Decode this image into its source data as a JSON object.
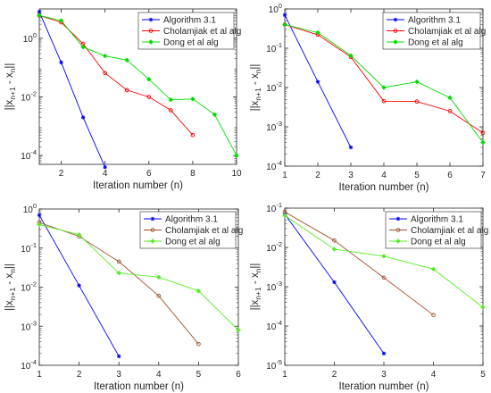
{
  "chart_data": [
    {
      "type": "line",
      "y_scale": "log",
      "xlabel": "Iteration number (n)",
      "ylabel": "||x_{n+1} - x_n||",
      "xlim": [
        1,
        10
      ],
      "ylim": [
        5e-05,
        10
      ],
      "x_ticks": [
        "2",
        "4",
        "6",
        "8",
        "10"
      ],
      "x_tick_values": [
        2,
        4,
        6,
        8,
        10
      ],
      "y_ticks": [
        "10^-4",
        "10^-2",
        "10^0"
      ],
      "y_tick_values": [
        0.0001,
        0.01,
        1
      ],
      "legend_position": "top-right",
      "series": [
        {
          "name": "Algorithm 3.1",
          "color": "#0000ff",
          "marker": "star",
          "x": [
            1,
            2,
            3,
            4
          ],
          "y": [
            8,
            0.15,
            0.002,
            4e-05
          ]
        },
        {
          "name": "Cholamjiak et al alg",
          "color": "#ff0000",
          "marker": "circle",
          "x": [
            1,
            2,
            3,
            4,
            5,
            6,
            7,
            8
          ],
          "y": [
            6,
            3.5,
            0.65,
            0.065,
            0.017,
            0.01,
            0.0035,
            0.0005
          ]
        },
        {
          "name": "Dong et al alg",
          "color": "#00dd00",
          "marker": "diamond",
          "x": [
            1,
            2,
            3,
            4,
            5,
            6,
            7,
            8,
            9,
            10
          ],
          "y": [
            6,
            4,
            0.5,
            0.25,
            0.18,
            0.04,
            0.008,
            0.0085,
            0.0025,
            0.0001
          ]
        }
      ]
    },
    {
      "type": "line",
      "y_scale": "log",
      "xlabel": "Iteration number (n)",
      "ylabel": "||x_{n+1} - x_n||",
      "xlim": [
        1,
        7
      ],
      "ylim": [
        0.0001,
        1
      ],
      "x_ticks": [
        "1",
        "2",
        "3",
        "4",
        "5",
        "6",
        "7"
      ],
      "x_tick_values": [
        1,
        2,
        3,
        4,
        5,
        6,
        7
      ],
      "y_ticks": [
        "10^-4",
        "10^-3",
        "10^-2",
        "10^-1",
        "10^0"
      ],
      "y_tick_values": [
        0.0001,
        0.001,
        0.01,
        0.1,
        1
      ],
      "legend_position": "top-right",
      "series": [
        {
          "name": "Algorithm 3.1",
          "color": "#0000ff",
          "marker": "star",
          "x": [
            1,
            2,
            3
          ],
          "y": [
            0.7,
            0.014,
            0.0003
          ]
        },
        {
          "name": "Cholamjiak et al alg",
          "color": "#ff0000",
          "marker": "circle",
          "x": [
            1,
            2,
            3,
            4,
            5,
            6,
            7
          ],
          "y": [
            0.4,
            0.22,
            0.06,
            0.0045,
            0.0044,
            0.0025,
            0.0007
          ]
        },
        {
          "name": "Dong et al alg",
          "color": "#00dd00",
          "marker": "diamond",
          "x": [
            1,
            2,
            3,
            4,
            5,
            6,
            7
          ],
          "y": [
            0.4,
            0.25,
            0.065,
            0.01,
            0.014,
            0.0055,
            0.0004
          ]
        }
      ]
    },
    {
      "type": "line",
      "y_scale": "log",
      "xlabel": "Iteration number (n)",
      "ylabel": "||x_{n+1} - x_n||",
      "xlim": [
        1,
        6
      ],
      "ylim": [
        0.0001,
        1
      ],
      "x_ticks": [
        "1",
        "2",
        "3",
        "4",
        "5",
        "6"
      ],
      "x_tick_values": [
        1,
        2,
        3,
        4,
        5,
        6
      ],
      "y_ticks": [
        "10^-4",
        "10^-3",
        "10^-2",
        "10^-1",
        "10^0"
      ],
      "y_tick_values": [
        0.0001,
        0.001,
        0.01,
        0.1,
        1
      ],
      "legend_position": "top-right",
      "series": [
        {
          "name": "Algorithm 3.1",
          "color": "#0000ff",
          "marker": "star",
          "x": [
            1,
            2,
            3
          ],
          "y": [
            0.7,
            0.011,
            0.00017
          ]
        },
        {
          "name": "Cholamjiak et al alg",
          "color": "#a0522d",
          "marker": "circle",
          "x": [
            1,
            2,
            3,
            4,
            5
          ],
          "y": [
            0.45,
            0.2,
            0.045,
            0.006,
            0.00035
          ]
        },
        {
          "name": "Dong et al alg",
          "color": "#55ee22",
          "marker": "diamond",
          "x": [
            1,
            2,
            3,
            4,
            5,
            6
          ],
          "y": [
            0.4,
            0.22,
            0.023,
            0.018,
            0.008,
            0.0008
          ]
        }
      ]
    },
    {
      "type": "line",
      "y_scale": "log",
      "xlabel": "Iteration number (n)",
      "ylabel": "||x_{n+1} - x_n||",
      "xlim": [
        1,
        5
      ],
      "ylim": [
        1e-05,
        0.1
      ],
      "x_ticks": [
        "1",
        "2",
        "3",
        "4",
        "5"
      ],
      "x_tick_values": [
        1,
        2,
        3,
        4,
        5
      ],
      "y_ticks": [
        "10^-5",
        "10^-4",
        "10^-3",
        "10^-2",
        "10^-1"
      ],
      "y_tick_values": [
        1e-05,
        0.0001,
        0.001,
        0.01,
        0.1
      ],
      "legend_position": "top-right",
      "series": [
        {
          "name": "Algorithm 3.1",
          "color": "#0000ff",
          "marker": "star",
          "x": [
            1,
            2,
            3
          ],
          "y": [
            0.07,
            0.0013,
            2e-05
          ]
        },
        {
          "name": "Cholamjiak et al alg",
          "color": "#a0522d",
          "marker": "circle",
          "x": [
            1,
            2,
            3,
            4
          ],
          "y": [
            0.08,
            0.015,
            0.0017,
            0.00019
          ]
        },
        {
          "name": "Dong et al alg",
          "color": "#55ee22",
          "marker": "diamond",
          "x": [
            1,
            2,
            3,
            4,
            5
          ],
          "y": [
            0.065,
            0.009,
            0.006,
            0.0028,
            0.0003
          ]
        }
      ]
    }
  ]
}
